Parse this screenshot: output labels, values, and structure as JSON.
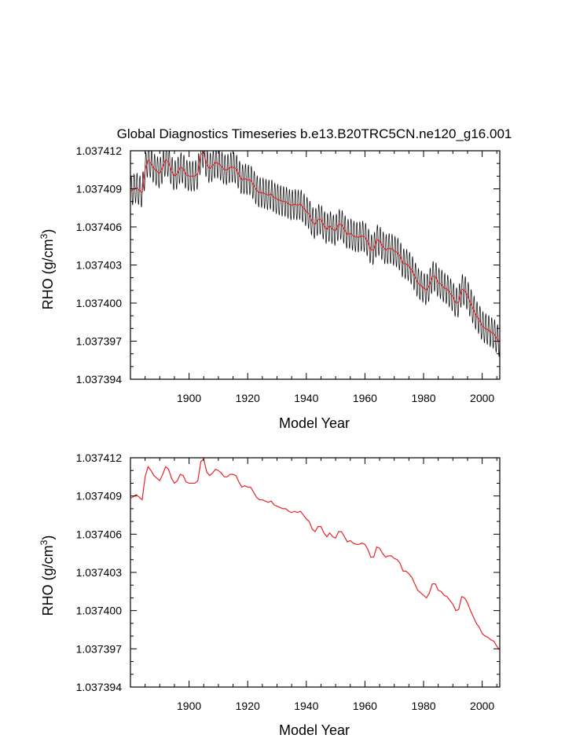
{
  "title": "Global Diagnostics Timeseries b.e13.B20TRC5CN.ne120_g16.001",
  "colors": {
    "monthly": "#000000",
    "annual": "#e8242a",
    "axis": "#000000"
  },
  "chart_data": [
    {
      "type": "line",
      "title": "Global Diagnostics Timeseries b.e13.B20TRC5CN.ne120_g16.001",
      "xlabel": "Model Year",
      "ylabel": "RHO (g/cm",
      "ylabel_sup": "3",
      "ylabel_end": ")",
      "xlim": [
        1880,
        2006
      ],
      "ylim": [
        1.037394,
        1.037412
      ],
      "xticks": [
        "1900",
        "1920",
        "1940",
        "1960",
        "1980",
        "2000"
      ],
      "yticks": [
        "1.037394",
        "1.037397",
        "1.037400",
        "1.037403",
        "1.037406",
        "1.037409",
        "1.037412"
      ],
      "series": [
        {
          "kind": "monthly",
          "seasonal_amplitude": 1.2e-06,
          "x": [
            1880,
            2006
          ]
        },
        {
          "kind": "annual",
          "x": [
            1880,
            1882,
            1883,
            1884,
            1885,
            1886,
            1887,
            1888,
            1889,
            1890,
            1891,
            1892,
            1893,
            1894,
            1895,
            1896,
            1897,
            1898,
            1899,
            1900,
            1901,
            1902,
            1903,
            1904,
            1905,
            1906,
            1907,
            1908,
            1909,
            1910,
            1911,
            1912,
            1913,
            1914,
            1915,
            1916,
            1917,
            1918,
            1919,
            1920,
            1921,
            1922,
            1923,
            1924,
            1925,
            1926,
            1927,
            1928,
            1929,
            1930,
            1931,
            1932,
            1933,
            1934,
            1935,
            1936,
            1937,
            1938,
            1939,
            1940,
            1941,
            1942,
            1943,
            1944,
            1945,
            1946,
            1947,
            1948,
            1949,
            1950,
            1951,
            1952,
            1953,
            1954,
            1955,
            1956,
            1957,
            1958,
            1959,
            1960,
            1961,
            1962,
            1963,
            1964,
            1965,
            1966,
            1967,
            1968,
            1969,
            1970,
            1971,
            1972,
            1973,
            1974,
            1975,
            1976,
            1977,
            1978,
            1979,
            1980,
            1981,
            1982,
            1983,
            1984,
            1985,
            1986,
            1987,
            1988,
            1989,
            1990,
            1991,
            1992,
            1993,
            1994,
            1995,
            1996,
            1997,
            1998,
            1999,
            2000,
            2001,
            2002,
            2003,
            2004,
            2005,
            2006
          ],
          "y": [
            1.0374088,
            1.0374091,
            1.0374089,
            1.0374087,
            1.0374105,
            1.0374113,
            1.037411,
            1.0374106,
            1.0374104,
            1.0374102,
            1.0374107,
            1.0374113,
            1.0374111,
            1.0374104,
            1.03741,
            1.0374102,
            1.0374107,
            1.0374106,
            1.0374101,
            1.03741,
            1.03741,
            1.03741,
            1.0374102,
            1.0374117,
            1.0374119,
            1.0374109,
            1.0374106,
            1.0374108,
            1.0374111,
            1.037411,
            1.0374108,
            1.0374105,
            1.0374105,
            1.0374107,
            1.0374107,
            1.0374106,
            1.0374101,
            1.0374097,
            1.0374098,
            1.0374097,
            1.0374097,
            1.0374093,
            1.0374089,
            1.0374087,
            1.0374087,
            1.0374086,
            1.0374085,
            1.0374086,
            1.0374083,
            1.0374082,
            1.0374081,
            1.037408,
            1.037408,
            1.0374078,
            1.0374077,
            1.0374078,
            1.0374077,
            1.0374078,
            1.0374075,
            1.0374072,
            1.037407,
            1.0374064,
            1.0374062,
            1.0374066,
            1.0374066,
            1.0374061,
            1.0374058,
            1.0374061,
            1.0374058,
            1.0374057,
            1.0374062,
            1.0374062,
            1.0374058,
            1.0374054,
            1.0374055,
            1.0374053,
            1.0374052,
            1.0374052,
            1.0374053,
            1.0374052,
            1.0374048,
            1.0374042,
            1.0374042,
            1.037405,
            1.0374049,
            1.0374045,
            1.0374042,
            1.0374043,
            1.0374043,
            1.0374041,
            1.037404,
            1.0374037,
            1.0374031,
            1.0374031,
            1.0374029,
            1.0374026,
            1.0374021,
            1.0374016,
            1.0374014,
            1.0374012,
            1.037401,
            1.0374014,
            1.0374021,
            1.0374021,
            1.0374016,
            1.0374015,
            1.0374012,
            1.0374011,
            1.0374008,
            1.0374005,
            1.0374,
            1.0374001,
            1.0374011,
            1.037401,
            1.0374006,
            1.0374,
            1.0373995,
            1.037399,
            1.0373987,
            1.0373982,
            1.037398,
            1.0373979,
            1.0373977,
            1.0373976,
            1.0373972,
            1.0373969
          ]
        }
      ]
    },
    {
      "type": "line",
      "xlabel": "Model Year",
      "ylabel": "RHO (g/cm",
      "ylabel_sup": "3",
      "ylabel_end": ")",
      "xlim": [
        1880,
        2006
      ],
      "ylim": [
        1.037394,
        1.037412
      ],
      "xticks": [
        "1900",
        "1920",
        "1940",
        "1960",
        "1980",
        "2000"
      ],
      "yticks": [
        "1.037394",
        "1.037397",
        "1.037400",
        "1.037403",
        "1.037406",
        "1.037409",
        "1.037412"
      ],
      "series": [
        {
          "kind": "annual",
          "ref": 0
        }
      ]
    }
  ]
}
